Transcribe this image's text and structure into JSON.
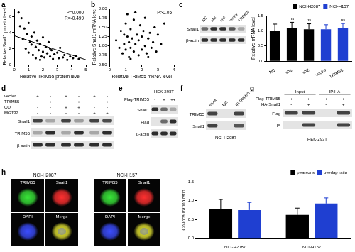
{
  "chart_data": [
    {
      "type": "scatter",
      "panel": "a",
      "x_label": "Relative TRIM55 protein level",
      "y_label": "Relative Snail1 protein level",
      "x": [
        0.3,
        0.5,
        0.6,
        0.7,
        0.8,
        0.9,
        1.0,
        1.0,
        1.1,
        1.2,
        1.3,
        1.4,
        1.5,
        1.5,
        1.6,
        1.7,
        1.8,
        1.9,
        2.0,
        2.0,
        2.1,
        2.2,
        2.3,
        2.4,
        2.5,
        2.6,
        2.7,
        2.8,
        3.0,
        3.1,
        3.2,
        3.4,
        3.5,
        3.7,
        3.9,
        4.1,
        4.3,
        4.5,
        0.4,
        1.2,
        1.8,
        2.5
      ],
      "values": [
        6.5,
        5.8,
        3.2,
        4.5,
        2.0,
        3.8,
        5.2,
        1.5,
        2.8,
        3.5,
        1.2,
        4.0,
        2.2,
        0.8,
        3.0,
        1.8,
        2.6,
        1.0,
        3.4,
        1.6,
        0.9,
        2.2,
        1.4,
        2.8,
        1.0,
        1.8,
        0.7,
        1.3,
        1.5,
        0.8,
        2.1,
        0.9,
        1.2,
        0.6,
        1.0,
        0.8,
        1.1,
        0.7,
        4.8,
        2.5,
        0.6,
        2.0
      ],
      "fit": {
        "x": [
          0,
          5
        ],
        "values": [
          3.6,
          0.6
        ]
      },
      "annotations": [
        "P=0.000",
        "R=-0.499"
      ],
      "xlim": [
        0,
        5
      ],
      "xticks": [
        0,
        1,
        2,
        3,
        4,
        5
      ],
      "ylim": [
        0,
        7
      ],
      "yticks": [
        0,
        2,
        4,
        6
      ],
      "color": "#000000",
      "marker": "circle"
    },
    {
      "type": "scatter",
      "panel": "b",
      "x_label": "Relative TRIM55 mRNA level",
      "y_label": "Relative Snail1 mRNA level",
      "x": [
        0.4,
        0.6,
        0.7,
        0.8,
        0.9,
        1.0,
        1.0,
        1.1,
        1.1,
        1.2,
        1.2,
        1.3,
        1.3,
        1.4,
        1.5,
        1.5,
        1.6,
        1.7,
        1.8,
        1.8,
        1.9,
        2.0,
        2.0,
        2.1,
        2.2,
        2.2,
        2.3,
        2.4,
        2.5,
        2.6,
        2.7,
        2.8,
        2.9,
        3.0,
        3.2,
        3.4,
        0.9,
        1.6,
        2.4,
        1.3
      ],
      "values": [
        1.15,
        0.95,
        1.4,
        0.8,
        1.05,
        1.6,
        0.9,
        1.25,
        1.85,
        0.7,
        1.1,
        1.45,
        0.95,
        1.2,
        0.85,
        1.7,
        1.05,
        1.3,
        0.75,
        1.15,
        1.55,
        0.9,
        1.25,
        1.4,
        1.0,
        1.75,
        0.8,
        1.2,
        1.35,
        0.95,
        1.1,
        1.5,
        0.85,
        1.3,
        1.05,
        1.6,
        1.3,
        1.9,
        0.7,
        0.65
      ],
      "annotations": [
        "P>0.05"
      ],
      "xlim": [
        0,
        4
      ],
      "xticks": [
        0,
        1,
        2,
        3,
        4
      ],
      "ylim": [
        0.5,
        2.0
      ],
      "yticks": [
        {
          "value": 0.5,
          "label": "0.50"
        },
        {
          "value": 0.75,
          "label": "0.75"
        },
        {
          "value": 1.0,
          "label": "1.00"
        },
        {
          "value": 1.25,
          "label": "1.25"
        },
        {
          "value": 1.5,
          "label": "1.50"
        },
        {
          "value": 1.75,
          "label": "1.75"
        },
        {
          "value": 2.0,
          "label": "2.00"
        }
      ],
      "color": "#000000",
      "marker": "circle"
    },
    {
      "type": "bar",
      "y_label": "Relative mRNA level",
      "categories": [
        "NC",
        "sh1",
        "sh2",
        "vector",
        "TRIM55"
      ],
      "series": [
        {
          "name": "NCI-H2087",
          "color": "#000000",
          "values": [
            1.0,
            1.08,
            1.05,
            null,
            null
          ],
          "errors": [
            0.22,
            0.2,
            0.18,
            null,
            null
          ]
        },
        {
          "name": "NCI-H157",
          "color": "#1f3fd1",
          "values": [
            null,
            null,
            null,
            1.05,
            1.08
          ],
          "errors": [
            null,
            null,
            null,
            0.15,
            0.16
          ]
        }
      ],
      "annotations": [
        {
          "category": "sh1",
          "text": "ns"
        },
        {
          "category": "sh2",
          "text": "ns"
        },
        {
          "category": "TRIM55",
          "text": "ns"
        }
      ],
      "ylim": [
        0,
        1.5
      ],
      "yticks": [
        {
          "value": 0,
          "label": "0.0"
        },
        {
          "value": 0.5,
          "label": "0.5"
        },
        {
          "value": 1.0,
          "label": "1.0"
        },
        {
          "value": 1.5,
          "label": "1.5"
        }
      ],
      "legend": "top-right"
    },
    {
      "type": "bar",
      "y_label": "Co-localization ratio",
      "categories": [
        "NCI-H2087",
        "NCI-H157"
      ],
      "series": [
        {
          "name": "pearsons",
          "color": "#000000",
          "values": [
            0.78,
            0.62
          ],
          "errors": [
            0.25,
            0.18
          ]
        },
        {
          "name": "overlap ratio",
          "color": "#1f3fd1",
          "values": [
            0.75,
            0.92
          ],
          "errors": [
            0.2,
            0.15
          ]
        }
      ],
      "ylim": [
        0,
        1.5
      ],
      "yticks": [
        {
          "value": 0,
          "label": "0.0"
        },
        {
          "value": 0.5,
          "label": "0.5"
        },
        {
          "value": 1.0,
          "label": "1.0"
        },
        {
          "value": 1.5,
          "label": "1.5"
        }
      ],
      "legend": "top-right"
    }
  ],
  "figure": {
    "blots": [
      {
        "panel": "c",
        "lanes": [
          "NC",
          "sh1",
          "sh2",
          "vector",
          "TRIM55"
        ],
        "rows": [
          {
            "label": "Snail1",
            "bands": [
              0.6,
              0.9,
              0.9,
              0.7,
              0.3
            ]
          },
          {
            "label": "β-actin",
            "bands": [
              0.9,
              0.9,
              0.9,
              0.9,
              0.9
            ]
          }
        ]
      },
      {
        "panel": "d",
        "conditions": [
          {
            "label": "vector",
            "marks": [
              "+",
              "-",
              "+",
              "-",
              "+",
              "-"
            ]
          },
          {
            "label": "TRIM55",
            "marks": [
              "-",
              "+",
              "-",
              "+",
              "-",
              "+"
            ]
          },
          {
            "label": "CQ",
            "marks": [
              "-",
              "-",
              "+",
              "+",
              "-",
              "-"
            ]
          },
          {
            "label": "MG132",
            "marks": [
              "-",
              "-",
              "-",
              "-",
              "+",
              "+"
            ]
          }
        ],
        "rows": [
          {
            "label": "Snail1",
            "bands": [
              0.8,
              0.3,
              0.8,
              0.35,
              0.8,
              0.75
            ]
          },
          {
            "label": "TRIM55",
            "bands": [
              0.3,
              0.9,
              0.3,
              0.9,
              0.3,
              0.9
            ]
          },
          {
            "label": "β-actin",
            "bands": [
              0.9,
              0.9,
              0.9,
              0.9,
              0.9,
              0.9
            ]
          }
        ]
      },
      {
        "panel": "e",
        "title": "HEK-293T",
        "conditions": [
          {
            "label": "Flag-TRIM55",
            "marks": [
              "-",
              "+",
              "++"
            ]
          }
        ],
        "rows": [
          {
            "label": "Snail1",
            "bands": [
              0.9,
              0.6,
              0.3
            ]
          },
          {
            "label": "Flag",
            "bands": [
              0.0,
              0.6,
              0.9
            ]
          },
          {
            "label": "β-actin",
            "bands": [
              0.9,
              0.9,
              0.9
            ]
          }
        ]
      },
      {
        "panel": "f",
        "caption": "NCI-H2087",
        "lanes": [
          "Input",
          "IgG",
          "IP:TRIM55"
        ],
        "rows": [
          {
            "label": "TRIM55",
            "bands": [
              0.8,
              0.0,
              0.8
            ]
          },
          {
            "label": "Snail1",
            "bands": [
              0.8,
              0.0,
              0.7
            ]
          }
        ]
      },
      {
        "panel": "g",
        "caption": "HEK-293T",
        "groups": [
          "Input",
          "IP:HA"
        ],
        "conditions": [
          {
            "label": "Flag-TRIM55",
            "marks": [
              "+",
              "+",
              "+",
              "+"
            ]
          },
          {
            "label": "HA-Snail1",
            "marks": [
              "-",
              "+",
              "-",
              "+"
            ]
          }
        ],
        "rows": [
          {
            "label": "Flag",
            "bands": [
              0.8,
              0.8,
              0.0,
              0.8
            ]
          },
          {
            "label": "HA",
            "bands": [
              0.0,
              0.8,
              0.0,
              0.8
            ]
          }
        ]
      }
    ],
    "images": {
      "panel": "h",
      "cells": [
        {
          "name": "NCI-H2087",
          "channels": [
            "TRIM55",
            "Snail1",
            "DAPI",
            "Merge"
          ]
        },
        {
          "name": "NCI-H157",
          "channels": [
            "TRIM55",
            "Snail1",
            "DAPI",
            "Merge"
          ]
        }
      ]
    }
  }
}
